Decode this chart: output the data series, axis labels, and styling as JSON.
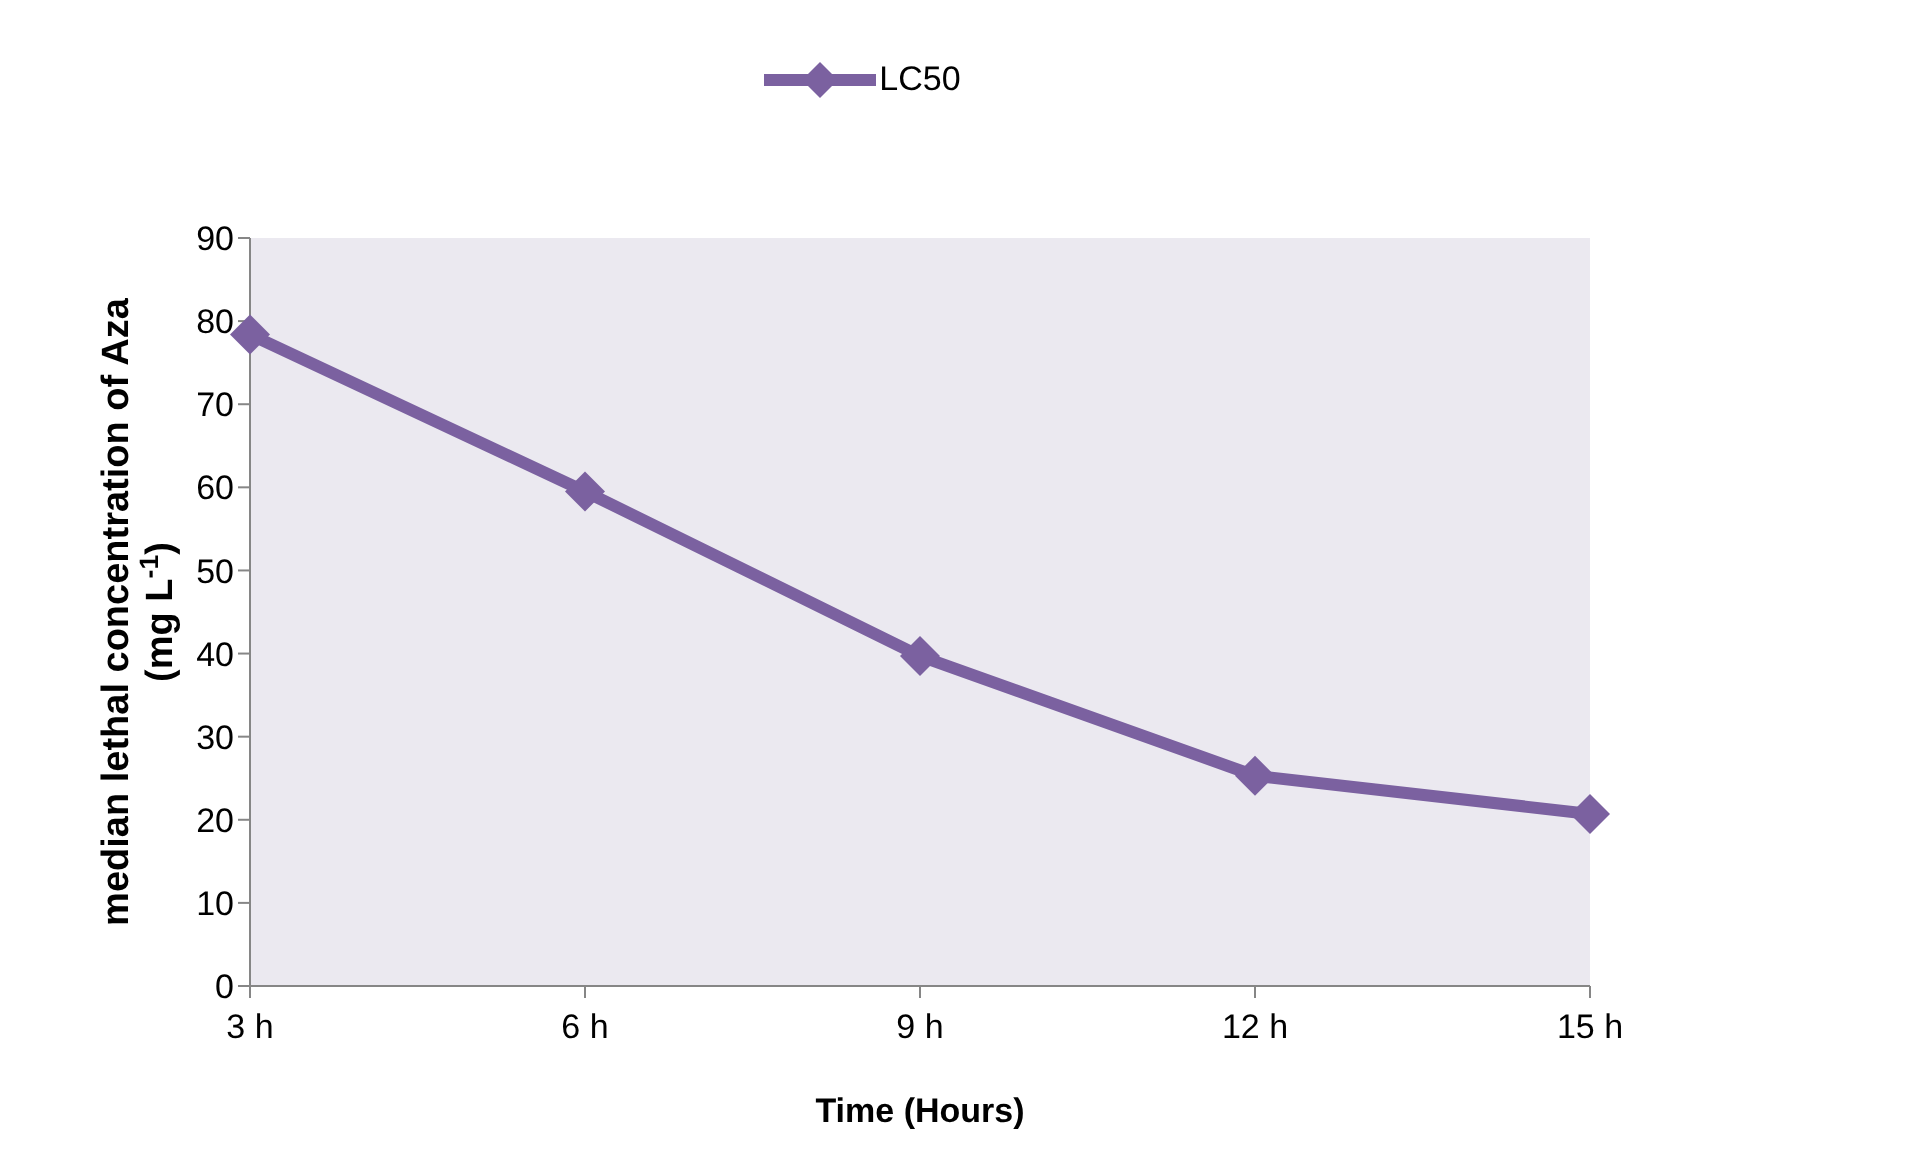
{
  "chart_data": {
    "type": "line",
    "categories": [
      "3 h",
      "6 h",
      "9 h",
      "12 h",
      "15 h"
    ],
    "series": [
      {
        "name": "LC50",
        "color": "#7b61a0",
        "values": [
          78.4,
          59.5,
          39.7,
          25.3,
          20.7
        ]
      }
    ],
    "xlabel": "Time (Hours)",
    "ylabel": "median lethal concentration of Aza\n(mg L$^{-1}$)",
    "ylim": [
      0,
      90
    ],
    "yticks": [
      0,
      10,
      20,
      30,
      40,
      50,
      60,
      70,
      80,
      90
    ],
    "legend": "top",
    "marker": "diamond",
    "grid": false
  }
}
